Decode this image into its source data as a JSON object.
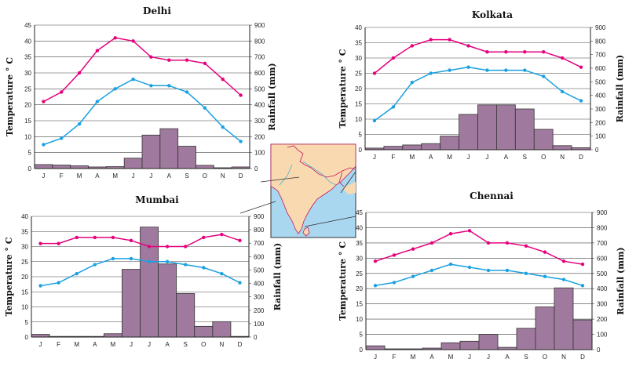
{
  "colors": {
    "temp_max": "#e6007e",
    "temp_min": "#1ba0e2",
    "rain_bar": "#a07a9e",
    "map_land": "#f9d9b0",
    "map_sea": "#a9d7f0"
  },
  "chart_data": [
    {
      "type": "bar+line",
      "title": "Delhi",
      "ylabel_left": "Temperature ° C",
      "ylabel_right": "Rainfall (mm)",
      "categories": [
        "J",
        "F",
        "M",
        "A",
        "M",
        "J",
        "J",
        "A",
        "S",
        "O",
        "N",
        "D"
      ],
      "temp_ylim": [
        0,
        45
      ],
      "temp_ticks": [
        "0",
        "5",
        "10",
        "15",
        "20",
        "25",
        "30",
        "35",
        "40",
        "45"
      ],
      "rain_ylim": [
        0,
        900
      ],
      "rain_ticks": [
        "0",
        "100",
        "200",
        "300",
        "400",
        "500",
        "600",
        "700",
        "800",
        "900"
      ],
      "rainfall": [
        25,
        22,
        17,
        10,
        12,
        65,
        210,
        250,
        140,
        20,
        5,
        10
      ],
      "temp_max": [
        21,
        24,
        30,
        37,
        41,
        40,
        35,
        34,
        34,
        33,
        28,
        23
      ],
      "temp_min": [
        7.5,
        9.5,
        14,
        21,
        25,
        28,
        26,
        26,
        24,
        19,
        13,
        8.5
      ]
    },
    {
      "type": "bar+line",
      "title": "Kolkata",
      "ylabel_left": "Temperature ° C",
      "ylabel_right": "Rainfall (mm)",
      "categories": [
        "J",
        "F",
        "M",
        "A",
        "M",
        "J",
        "J",
        "A",
        "S",
        "O",
        "N",
        "D"
      ],
      "temp_ylim": [
        0,
        40
      ],
      "temp_ticks": [
        "0",
        "5",
        "10",
        "15",
        "20",
        "25",
        "30",
        "35",
        "40"
      ],
      "rain_ylim": [
        0,
        900
      ],
      "rain_ticks": [
        "0",
        "100",
        "200",
        "300",
        "400",
        "500",
        "600",
        "700",
        "800",
        "900"
      ],
      "rainfall": [
        12,
        25,
        35,
        45,
        100,
        260,
        330,
        330,
        300,
        150,
        30,
        15
      ],
      "temp_max": [
        25,
        30,
        34,
        36,
        36,
        34,
        32,
        32,
        32,
        32,
        30,
        27
      ],
      "temp_min": [
        9.5,
        14,
        22,
        25,
        26,
        27,
        26,
        26,
        26,
        24,
        19,
        16
      ]
    },
    {
      "type": "bar+line",
      "title": "Mumbai",
      "ylabel_left": "Temperature ° C",
      "ylabel_right": "Rainfall (mm)",
      "categories": [
        "J",
        "F",
        "M",
        "A",
        "M",
        "J",
        "J",
        "A",
        "S",
        "O",
        "N",
        "D"
      ],
      "temp_ylim": [
        0,
        40
      ],
      "temp_ticks": [
        "0",
        "5",
        "10",
        "15",
        "20",
        "25",
        "30",
        "35",
        "40"
      ],
      "rain_ylim": [
        0,
        900
      ],
      "rain_ticks": [
        "0",
        "100",
        "200",
        "300",
        "400",
        "500",
        "600",
        "700",
        "800",
        "900"
      ],
      "rainfall": [
        20,
        5,
        5,
        5,
        25,
        505,
        820,
        545,
        325,
        80,
        115,
        5
      ],
      "temp_max": [
        31,
        31,
        33,
        33,
        33,
        32,
        30,
        30,
        30,
        33,
        34,
        32
      ],
      "temp_min": [
        17,
        18,
        21,
        24,
        26,
        26,
        25,
        25,
        24,
        23,
        21,
        18
      ]
    },
    {
      "type": "bar+line",
      "title": "Chennai",
      "ylabel_left": "Temperature ° C",
      "ylabel_right": "Rainfall (mm)",
      "categories": [
        "J",
        "F",
        "M",
        "A",
        "M",
        "J",
        "J",
        "A",
        "S",
        "O",
        "N",
        "D"
      ],
      "temp_ylim": [
        0,
        45
      ],
      "temp_ticks": [
        "0",
        "5",
        "10",
        "15",
        "20",
        "25",
        "30",
        "35",
        "40",
        "45"
      ],
      "rain_ylim": [
        0,
        900
      ],
      "rain_ticks": [
        "0",
        "100",
        "200",
        "300",
        "400",
        "500",
        "600",
        "700",
        "800",
        "900"
      ],
      "rainfall": [
        25,
        5,
        5,
        10,
        45,
        55,
        100,
        15,
        140,
        280,
        405,
        195
      ],
      "temp_max": [
        29,
        31,
        33,
        35,
        38,
        39,
        35,
        35,
        34,
        32,
        29,
        28
      ],
      "temp_min": [
        21,
        22,
        24,
        26,
        28,
        27,
        26,
        26,
        25,
        24,
        23,
        21
      ]
    }
  ]
}
